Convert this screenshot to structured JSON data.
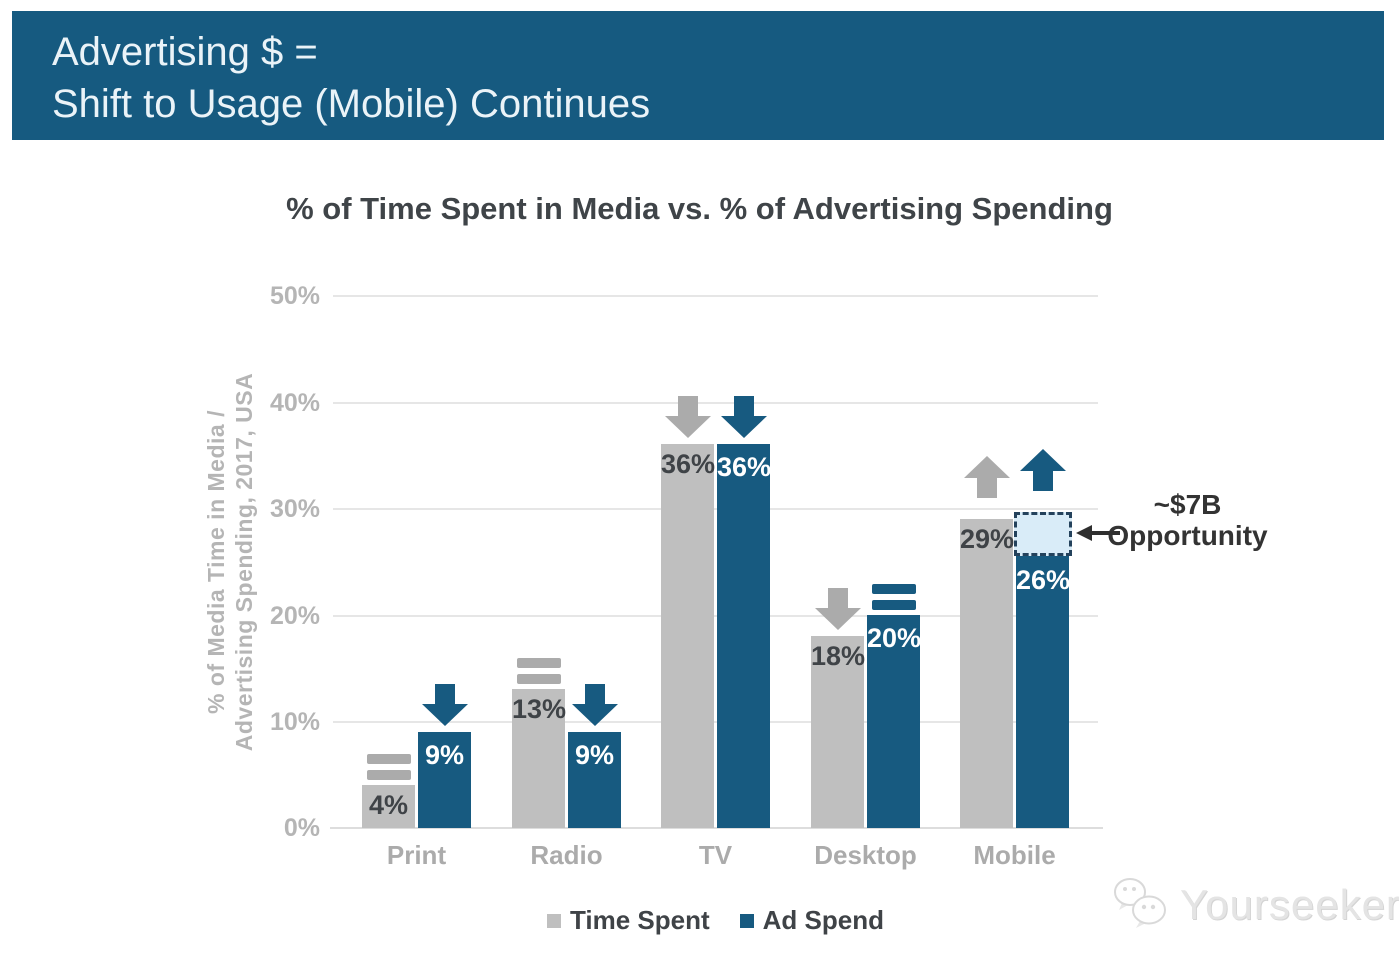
{
  "banner": {
    "line1": "Advertising $ =",
    "line2": "Shift to Usage (Mobile) Continues"
  },
  "chart_data": {
    "type": "bar",
    "title": "% of Time Spent in Media vs. % of Advertising Spending",
    "ylabel_line1": "% of Media Time in Media /",
    "ylabel_line2": "Advertising Spending, 2017, USA",
    "categories": [
      "Print",
      "Radio",
      "TV",
      "Desktop",
      "Mobile"
    ],
    "series": [
      {
        "name": "Time Spent",
        "values": [
          4,
          13,
          36,
          18,
          29
        ],
        "labels": [
          "4%",
          "13%",
          "36%",
          "18%",
          "29%"
        ],
        "trend_indicators": [
          "equals",
          "equals",
          "down",
          "down",
          "up"
        ]
      },
      {
        "name": "Ad Spend",
        "values": [
          9,
          9,
          36,
          20,
          26
        ],
        "labels": [
          "9%",
          "9%",
          "36%",
          "20%",
          "26%"
        ],
        "trend_indicators": [
          "down",
          "down",
          "down",
          "equals",
          "up"
        ]
      }
    ],
    "ylim": [
      0,
      50
    ],
    "yticks": [
      "0%",
      "10%",
      "20%",
      "30%",
      "40%",
      "50%"
    ],
    "grid": true,
    "legend_position": "bottom",
    "annotation": {
      "line1": "~$7B",
      "line2": "Opportunity"
    }
  },
  "watermark": {
    "text": "Yourseeker"
  },
  "colors": {
    "banner_bg": "#165A80",
    "bar_blue": "#175A80",
    "bar_gray": "#BFBFBF",
    "indicator_gray": "#ABABAB",
    "label_dark": "#3F4347",
    "value_label_white": "#FFFFFF",
    "axis_gray": "#B5B5B5",
    "gridline": "#E6E6E6",
    "opportunity_fill": "#D9ECF8",
    "opportunity_border": "#24425C",
    "annotation_dark": "#333333",
    "watermark_gray": "#E4E4E4"
  }
}
